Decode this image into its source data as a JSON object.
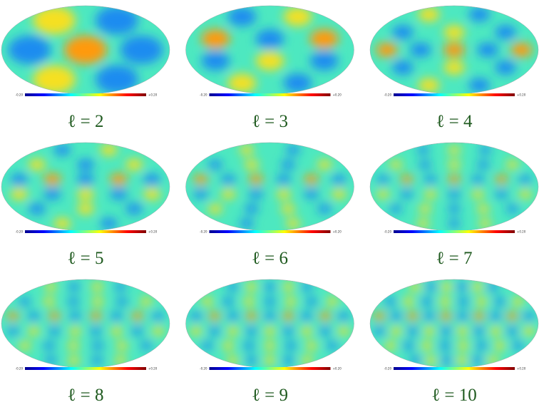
{
  "panels": [
    {
      "label": "ℓ = 2",
      "colorbar": {
        "min": "-0.20",
        "max": "+0.20"
      }
    },
    {
      "label": "ℓ = 3",
      "colorbar": {
        "min": "-0.20",
        "max": "+0.20"
      }
    },
    {
      "label": "ℓ = 4",
      "colorbar": {
        "min": "-0.20",
        "max": "+0.20"
      }
    },
    {
      "label": "ℓ = 5",
      "colorbar": {
        "min": "-0.20",
        "max": "+0.20"
      }
    },
    {
      "label": "ℓ = 6",
      "colorbar": {
        "min": "-0.20",
        "max": "+0.20"
      }
    },
    {
      "label": "ℓ = 7",
      "colorbar": {
        "min": "-0.20",
        "max": "+0.20"
      }
    },
    {
      "label": "ℓ = 8",
      "colorbar": {
        "min": "-0.20",
        "max": "+0.20"
      }
    },
    {
      "label": "ℓ = 9",
      "colorbar": {
        "min": "-0.20",
        "max": "+0.20"
      }
    },
    {
      "label": "ℓ = 10",
      "colorbar": {
        "min": "-0.20",
        "max": "+0.20"
      }
    }
  ]
}
